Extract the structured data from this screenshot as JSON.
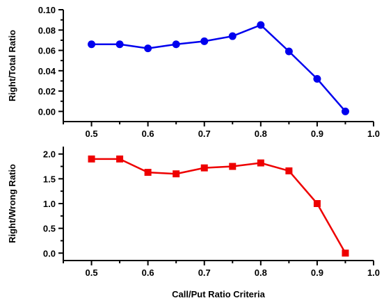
{
  "chart_data": [
    {
      "type": "line",
      "title": "",
      "xlabel": "",
      "ylabel": "Right/Total Ratio",
      "xlim": [
        0.45,
        1.0
      ],
      "ylim": [
        -0.01,
        0.1
      ],
      "x_ticks": [
        0.5,
        0.6,
        0.7,
        0.8,
        0.9,
        1.0
      ],
      "x_tick_labels": [
        "0.5",
        "0.6",
        "0.7",
        "0.8",
        "0.9",
        "1.0"
      ],
      "y_ticks": [
        0.0,
        0.02,
        0.04,
        0.06,
        0.08,
        0.1
      ],
      "y_tick_labels": [
        "0.00",
        "0.02",
        "0.04",
        "0.06",
        "0.08",
        "0.10"
      ],
      "grid": false,
      "series": [
        {
          "color": "#0000ee",
          "marker": "circle",
          "x": [
            0.5,
            0.55,
            0.6,
            0.65,
            0.7,
            0.75,
            0.8,
            0.85,
            0.9,
            0.95
          ],
          "y": [
            0.066,
            0.066,
            0.062,
            0.066,
            0.069,
            0.074,
            0.085,
            0.059,
            0.032,
            0.0
          ]
        }
      ]
    },
    {
      "type": "line",
      "title": "",
      "xlabel": "Call/Put Ratio Criteria",
      "ylabel": "Right/Wrong Ratio",
      "xlim": [
        0.45,
        1.0
      ],
      "ylim": [
        -0.15,
        2.15
      ],
      "x_ticks": [
        0.5,
        0.6,
        0.7,
        0.8,
        0.9,
        1.0
      ],
      "x_tick_labels": [
        "0.5",
        "0.6",
        "0.7",
        "0.8",
        "0.9",
        "1.0"
      ],
      "y_ticks": [
        0.0,
        0.5,
        1.0,
        1.5,
        2.0
      ],
      "y_tick_labels": [
        "0.0",
        "0.5",
        "1.0",
        "1.5",
        "2.0"
      ],
      "grid": false,
      "series": [
        {
          "color": "#ee0000",
          "marker": "square",
          "x": [
            0.5,
            0.55,
            0.6,
            0.65,
            0.7,
            0.75,
            0.8,
            0.85,
            0.9,
            0.95
          ],
          "y": [
            1.9,
            1.9,
            1.63,
            1.6,
            1.72,
            1.75,
            1.82,
            1.66,
            1.0,
            0.0
          ]
        }
      ]
    }
  ]
}
